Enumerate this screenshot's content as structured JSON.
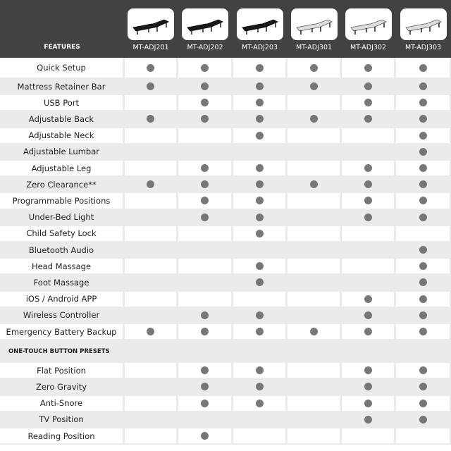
{
  "header": {
    "features_label": "FEATURES",
    "models": [
      {
        "name": "MT-ADJ201",
        "color": "#1a1a1a"
      },
      {
        "name": "MT-ADJ202",
        "color": "#1a1a1a"
      },
      {
        "name": "MT-ADJ203",
        "color": "#1a1a1a"
      },
      {
        "name": "MT-ADJ301",
        "color": "#dddddd"
      },
      {
        "name": "MT-ADJ302",
        "color": "#dddddd"
      },
      {
        "name": "MT-ADJ303",
        "color": "#dddddd"
      }
    ]
  },
  "features": [
    {
      "label": "Quick Setup",
      "has": [
        1,
        1,
        1,
        1,
        1,
        1
      ]
    },
    {
      "label": "Mattress Retainer Bar",
      "has": [
        1,
        1,
        1,
        1,
        1,
        1
      ]
    },
    {
      "label": "USB Port",
      "has": [
        0,
        1,
        1,
        0,
        1,
        1
      ]
    },
    {
      "label": "Adjustable Back",
      "has": [
        1,
        1,
        1,
        1,
        1,
        1
      ]
    },
    {
      "label": "Adjustable Neck",
      "has": [
        0,
        0,
        1,
        0,
        0,
        1
      ]
    },
    {
      "label": "Adjustable Lumbar",
      "has": [
        0,
        0,
        0,
        0,
        0,
        1
      ]
    },
    {
      "label": "Adjustable Leg",
      "has": [
        0,
        1,
        1,
        0,
        1,
        1
      ]
    },
    {
      "label": "Zero Clearance**",
      "has": [
        1,
        1,
        1,
        1,
        1,
        1
      ]
    },
    {
      "label": "Programmable Positions",
      "has": [
        0,
        1,
        1,
        0,
        1,
        1
      ]
    },
    {
      "label": "Under-Bed Light",
      "has": [
        0,
        1,
        1,
        0,
        1,
        1
      ]
    },
    {
      "label": "Child Safety Lock",
      "has": [
        0,
        0,
        1,
        0,
        0,
        0
      ]
    },
    {
      "label": "Bluetooth Audio",
      "has": [
        0,
        0,
        0,
        0,
        0,
        1
      ]
    },
    {
      "label": "Head Massage",
      "has": [
        0,
        0,
        1,
        0,
        0,
        1
      ]
    },
    {
      "label": "Foot Massage",
      "has": [
        0,
        0,
        1,
        0,
        0,
        1
      ]
    },
    {
      "label": "iOS / Android APP",
      "has": [
        0,
        0,
        0,
        0,
        1,
        1
      ]
    },
    {
      "label": "Wireless Controller",
      "has": [
        0,
        1,
        1,
        0,
        1,
        1
      ]
    },
    {
      "label": "Emergency Battery Backup",
      "has": [
        1,
        1,
        1,
        1,
        1,
        1
      ]
    }
  ],
  "presets_section": {
    "title": "ONE-TOUCH BUTTON PRESETS",
    "rows": [
      {
        "label": "Flat Position",
        "has": [
          0,
          1,
          1,
          0,
          1,
          1
        ]
      },
      {
        "label": "Zero Gravity",
        "has": [
          0,
          1,
          1,
          0,
          1,
          1
        ]
      },
      {
        "label": "Anti-Snore",
        "has": [
          0,
          1,
          1,
          0,
          1,
          1
        ]
      },
      {
        "label": "TV Position",
        "has": [
          0,
          0,
          0,
          0,
          1,
          1
        ]
      },
      {
        "label": "Reading Position",
        "has": [
          0,
          1,
          0,
          0,
          0,
          0
        ]
      }
    ]
  },
  "colors": {
    "header_bg": "#424242",
    "dot": "#777777",
    "stripe": "#ebebeb"
  }
}
